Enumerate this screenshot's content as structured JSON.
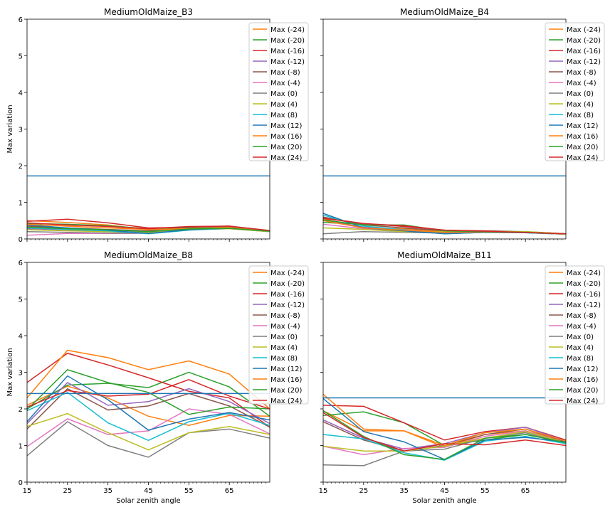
{
  "colors": [
    "#ff7f0e",
    "#2ca02c",
    "#d62728",
    "#9467bd",
    "#8c564b",
    "#e377c2",
    "#7f7f7f",
    "#bcbd22",
    "#17becf",
    "#1f77b4",
    "#ff7f0e",
    "#2ca02c",
    "#d62728"
  ],
  "ref_color": "#1f77b4",
  "chart_data": [
    {
      "type": "line",
      "title": "MediumOldMaize_B3",
      "ylabel": "Max variation",
      "xlabel": "",
      "xlim": [
        15,
        75
      ],
      "ylim": [
        0,
        6
      ],
      "x": [
        15,
        25,
        35,
        45,
        55,
        65,
        75
      ],
      "xticks": [],
      "yticks": [
        0,
        1,
        2,
        3,
        4,
        5,
        6
      ],
      "reference_line": 1.72,
      "legend": "top-right",
      "series": [
        {
          "name": "Max (-24)",
          "values": [
            0.5,
            0.45,
            0.38,
            0.25,
            0.28,
            0.33,
            0.22
          ]
        },
        {
          "name": "Max (-20)",
          "values": [
            0.42,
            0.4,
            0.36,
            0.28,
            0.3,
            0.3,
            0.22
          ]
        },
        {
          "name": "Max (-16)",
          "values": [
            0.48,
            0.54,
            0.44,
            0.3,
            0.32,
            0.35,
            0.22
          ]
        },
        {
          "name": "Max (-12)",
          "values": [
            0.28,
            0.25,
            0.2,
            0.18,
            0.25,
            0.3,
            0.2
          ]
        },
        {
          "name": "Max (-8)",
          "values": [
            0.35,
            0.3,
            0.26,
            0.22,
            0.33,
            0.35,
            0.22
          ]
        },
        {
          "name": "Max (-4)",
          "values": [
            0.1,
            0.15,
            0.15,
            0.15,
            0.26,
            0.3,
            0.2
          ]
        },
        {
          "name": "Max (0)",
          "values": [
            0.2,
            0.18,
            0.16,
            0.16,
            0.25,
            0.28,
            0.2
          ]
        },
        {
          "name": "Max (4)",
          "values": [
            0.25,
            0.22,
            0.2,
            0.18,
            0.26,
            0.28,
            0.2
          ]
        },
        {
          "name": "Max (8)",
          "values": [
            0.3,
            0.26,
            0.22,
            0.14,
            0.24,
            0.29,
            0.21
          ]
        },
        {
          "name": "Max (12)",
          "values": [
            0.38,
            0.3,
            0.24,
            0.15,
            0.25,
            0.3,
            0.22
          ]
        },
        {
          "name": "Max (16)",
          "values": [
            0.4,
            0.35,
            0.3,
            0.26,
            0.28,
            0.3,
            0.22
          ]
        },
        {
          "name": "Max (20)",
          "values": [
            0.32,
            0.28,
            0.25,
            0.2,
            0.27,
            0.29,
            0.21
          ]
        },
        {
          "name": "Max (24)",
          "values": [
            0.44,
            0.38,
            0.34,
            0.28,
            0.34,
            0.35,
            0.23
          ]
        }
      ]
    },
    {
      "type": "line",
      "title": "MediumOldMaize_B4",
      "ylabel": "",
      "xlabel": "",
      "xlim": [
        15,
        75
      ],
      "ylim": [
        0,
        6
      ],
      "x": [
        15,
        25,
        35,
        45,
        55,
        65,
        75
      ],
      "xticks": [],
      "yticks": [],
      "reference_line": 1.72,
      "legend": "top-right",
      "series": [
        {
          "name": "Max (-24)",
          "values": [
            0.55,
            0.3,
            0.28,
            0.2,
            0.2,
            0.18,
            0.14
          ]
        },
        {
          "name": "Max (-20)",
          "values": [
            0.45,
            0.4,
            0.36,
            0.22,
            0.22,
            0.2,
            0.14
          ]
        },
        {
          "name": "Max (-16)",
          "values": [
            0.58,
            0.42,
            0.34,
            0.24,
            0.22,
            0.19,
            0.14
          ]
        },
        {
          "name": "Max (-12)",
          "values": [
            0.5,
            0.32,
            0.25,
            0.18,
            0.2,
            0.18,
            0.13
          ]
        },
        {
          "name": "Max (-8)",
          "values": [
            0.6,
            0.38,
            0.3,
            0.22,
            0.21,
            0.18,
            0.14
          ]
        },
        {
          "name": "Max (-4)",
          "values": [
            0.4,
            0.28,
            0.22,
            0.18,
            0.19,
            0.18,
            0.13
          ]
        },
        {
          "name": "Max (0)",
          "values": [
            0.14,
            0.2,
            0.18,
            0.16,
            0.18,
            0.17,
            0.13
          ]
        },
        {
          "name": "Max (4)",
          "values": [
            0.3,
            0.26,
            0.2,
            0.2,
            0.2,
            0.2,
            0.14
          ]
        },
        {
          "name": "Max (8)",
          "values": [
            0.65,
            0.35,
            0.25,
            0.14,
            0.18,
            0.17,
            0.13
          ]
        },
        {
          "name": "Max (12)",
          "values": [
            0.7,
            0.3,
            0.22,
            0.14,
            0.18,
            0.17,
            0.13
          ]
        },
        {
          "name": "Max (16)",
          "values": [
            0.5,
            0.3,
            0.24,
            0.18,
            0.19,
            0.18,
            0.13
          ]
        },
        {
          "name": "Max (20)",
          "values": [
            0.52,
            0.38,
            0.38,
            0.22,
            0.2,
            0.18,
            0.14
          ]
        },
        {
          "name": "Max (24)",
          "values": [
            0.56,
            0.42,
            0.36,
            0.24,
            0.21,
            0.18,
            0.14
          ]
        }
      ]
    },
    {
      "type": "line",
      "title": "MediumOldMaize_B8",
      "ylabel": "Max variation",
      "xlabel": "Solar zenith angle",
      "xlim": [
        15,
        75
      ],
      "ylim": [
        0,
        6
      ],
      "x": [
        15,
        25,
        35,
        45,
        55,
        65,
        75
      ],
      "xticks": [
        15,
        25,
        35,
        45,
        55,
        65
      ],
      "yticks": [
        0,
        1,
        2,
        3,
        4,
        5,
        6
      ],
      "reference_line": 2.42,
      "legend": "top-right",
      "series": [
        {
          "name": "Max (-24)",
          "values": [
            2.1,
            2.62,
            2.3,
            1.8,
            1.55,
            1.82,
            1.8
          ]
        },
        {
          "name": "Max (-20)",
          "values": [
            2.0,
            2.65,
            2.7,
            2.58,
            3.0,
            2.6,
            1.8
          ]
        },
        {
          "name": "Max (-16)",
          "values": [
            2.72,
            3.52,
            3.2,
            2.85,
            2.48,
            2.3,
            1.5
          ]
        },
        {
          "name": "Max (-12)",
          "values": [
            1.6,
            2.72,
            2.1,
            2.2,
            2.55,
            2.2,
            1.6
          ]
        },
        {
          "name": "Max (-8)",
          "values": [
            1.45,
            2.55,
            1.97,
            2.08,
            2.42,
            2.08,
            1.5
          ]
        },
        {
          "name": "Max (-4)",
          "values": [
            0.97,
            1.73,
            1.3,
            1.4,
            2.0,
            1.85,
            1.32
          ]
        },
        {
          "name": "Max (0)",
          "values": [
            0.72,
            1.65,
            1.0,
            0.68,
            1.35,
            1.45,
            1.2
          ]
        },
        {
          "name": "Max (4)",
          "values": [
            1.52,
            1.87,
            1.35,
            0.88,
            1.35,
            1.52,
            1.3
          ]
        },
        {
          "name": "Max (8)",
          "values": [
            1.95,
            2.45,
            1.62,
            1.14,
            1.65,
            1.88,
            1.55
          ]
        },
        {
          "name": "Max (12)",
          "values": [
            1.65,
            2.9,
            2.25,
            1.42,
            1.72,
            1.9,
            1.7
          ]
        },
        {
          "name": "Max (16)",
          "values": [
            2.3,
            3.6,
            3.4,
            3.07,
            3.31,
            2.95,
            2.0
          ]
        },
        {
          "name": "Max (20)",
          "values": [
            1.98,
            3.07,
            2.72,
            2.45,
            1.85,
            2.05,
            2.0
          ]
        },
        {
          "name": "Max (24)",
          "values": [
            2.05,
            2.5,
            2.35,
            2.4,
            2.8,
            2.35,
            2.0
          ]
        }
      ]
    },
    {
      "type": "line",
      "title": "MediumOldMaize_B11",
      "ylabel": "",
      "xlabel": "Solar zenith angle",
      "xlim": [
        15,
        75
      ],
      "ylim": [
        0,
        6
      ],
      "x": [
        15,
        25,
        35,
        45,
        55,
        65,
        75
      ],
      "xticks": [
        15,
        25,
        35,
        45,
        55,
        65
      ],
      "yticks": [],
      "reference_line": 2.3,
      "legend": "top-right",
      "series": [
        {
          "name": "Max (-24)",
          "values": [
            1.95,
            1.4,
            1.4,
            0.95,
            1.3,
            1.4,
            1.12
          ]
        },
        {
          "name": "Max (-20)",
          "values": [
            1.82,
            1.92,
            1.62,
            1.0,
            1.15,
            1.3,
            1.1
          ]
        },
        {
          "name": "Max (-16)",
          "values": [
            2.1,
            2.07,
            1.62,
            1.15,
            1.38,
            1.5,
            1.15
          ]
        },
        {
          "name": "Max (-12)",
          "values": [
            1.7,
            1.2,
            0.9,
            1.05,
            1.35,
            1.5,
            1.12
          ]
        },
        {
          "name": "Max (-8)",
          "values": [
            1.65,
            1.15,
            0.85,
            1.0,
            1.3,
            1.45,
            1.1
          ]
        },
        {
          "name": "Max (-4)",
          "values": [
            0.98,
            0.75,
            0.92,
            0.95,
            1.25,
            1.4,
            1.08
          ]
        },
        {
          "name": "Max (0)",
          "values": [
            0.47,
            0.45,
            0.85,
            0.9,
            1.2,
            1.35,
            1.05
          ]
        },
        {
          "name": "Max (4)",
          "values": [
            0.98,
            0.85,
            0.85,
            0.98,
            1.2,
            1.38,
            1.08
          ]
        },
        {
          "name": "Max (8)",
          "values": [
            1.3,
            1.18,
            0.8,
            0.6,
            1.12,
            1.25,
            1.05
          ]
        },
        {
          "name": "Max (12)",
          "values": [
            2.28,
            1.38,
            1.1,
            0.62,
            1.15,
            1.22,
            1.1
          ]
        },
        {
          "name": "Max (16)",
          "values": [
            2.4,
            1.45,
            1.4,
            1.0,
            1.35,
            1.45,
            1.12
          ]
        },
        {
          "name": "Max (20)",
          "values": [
            1.95,
            1.25,
            0.75,
            0.62,
            1.2,
            1.3,
            1.08
          ]
        },
        {
          "name": "Max (24)",
          "values": [
            1.9,
            1.22,
            0.85,
            1.05,
            1.02,
            1.15,
            1.0
          ]
        }
      ]
    }
  ]
}
